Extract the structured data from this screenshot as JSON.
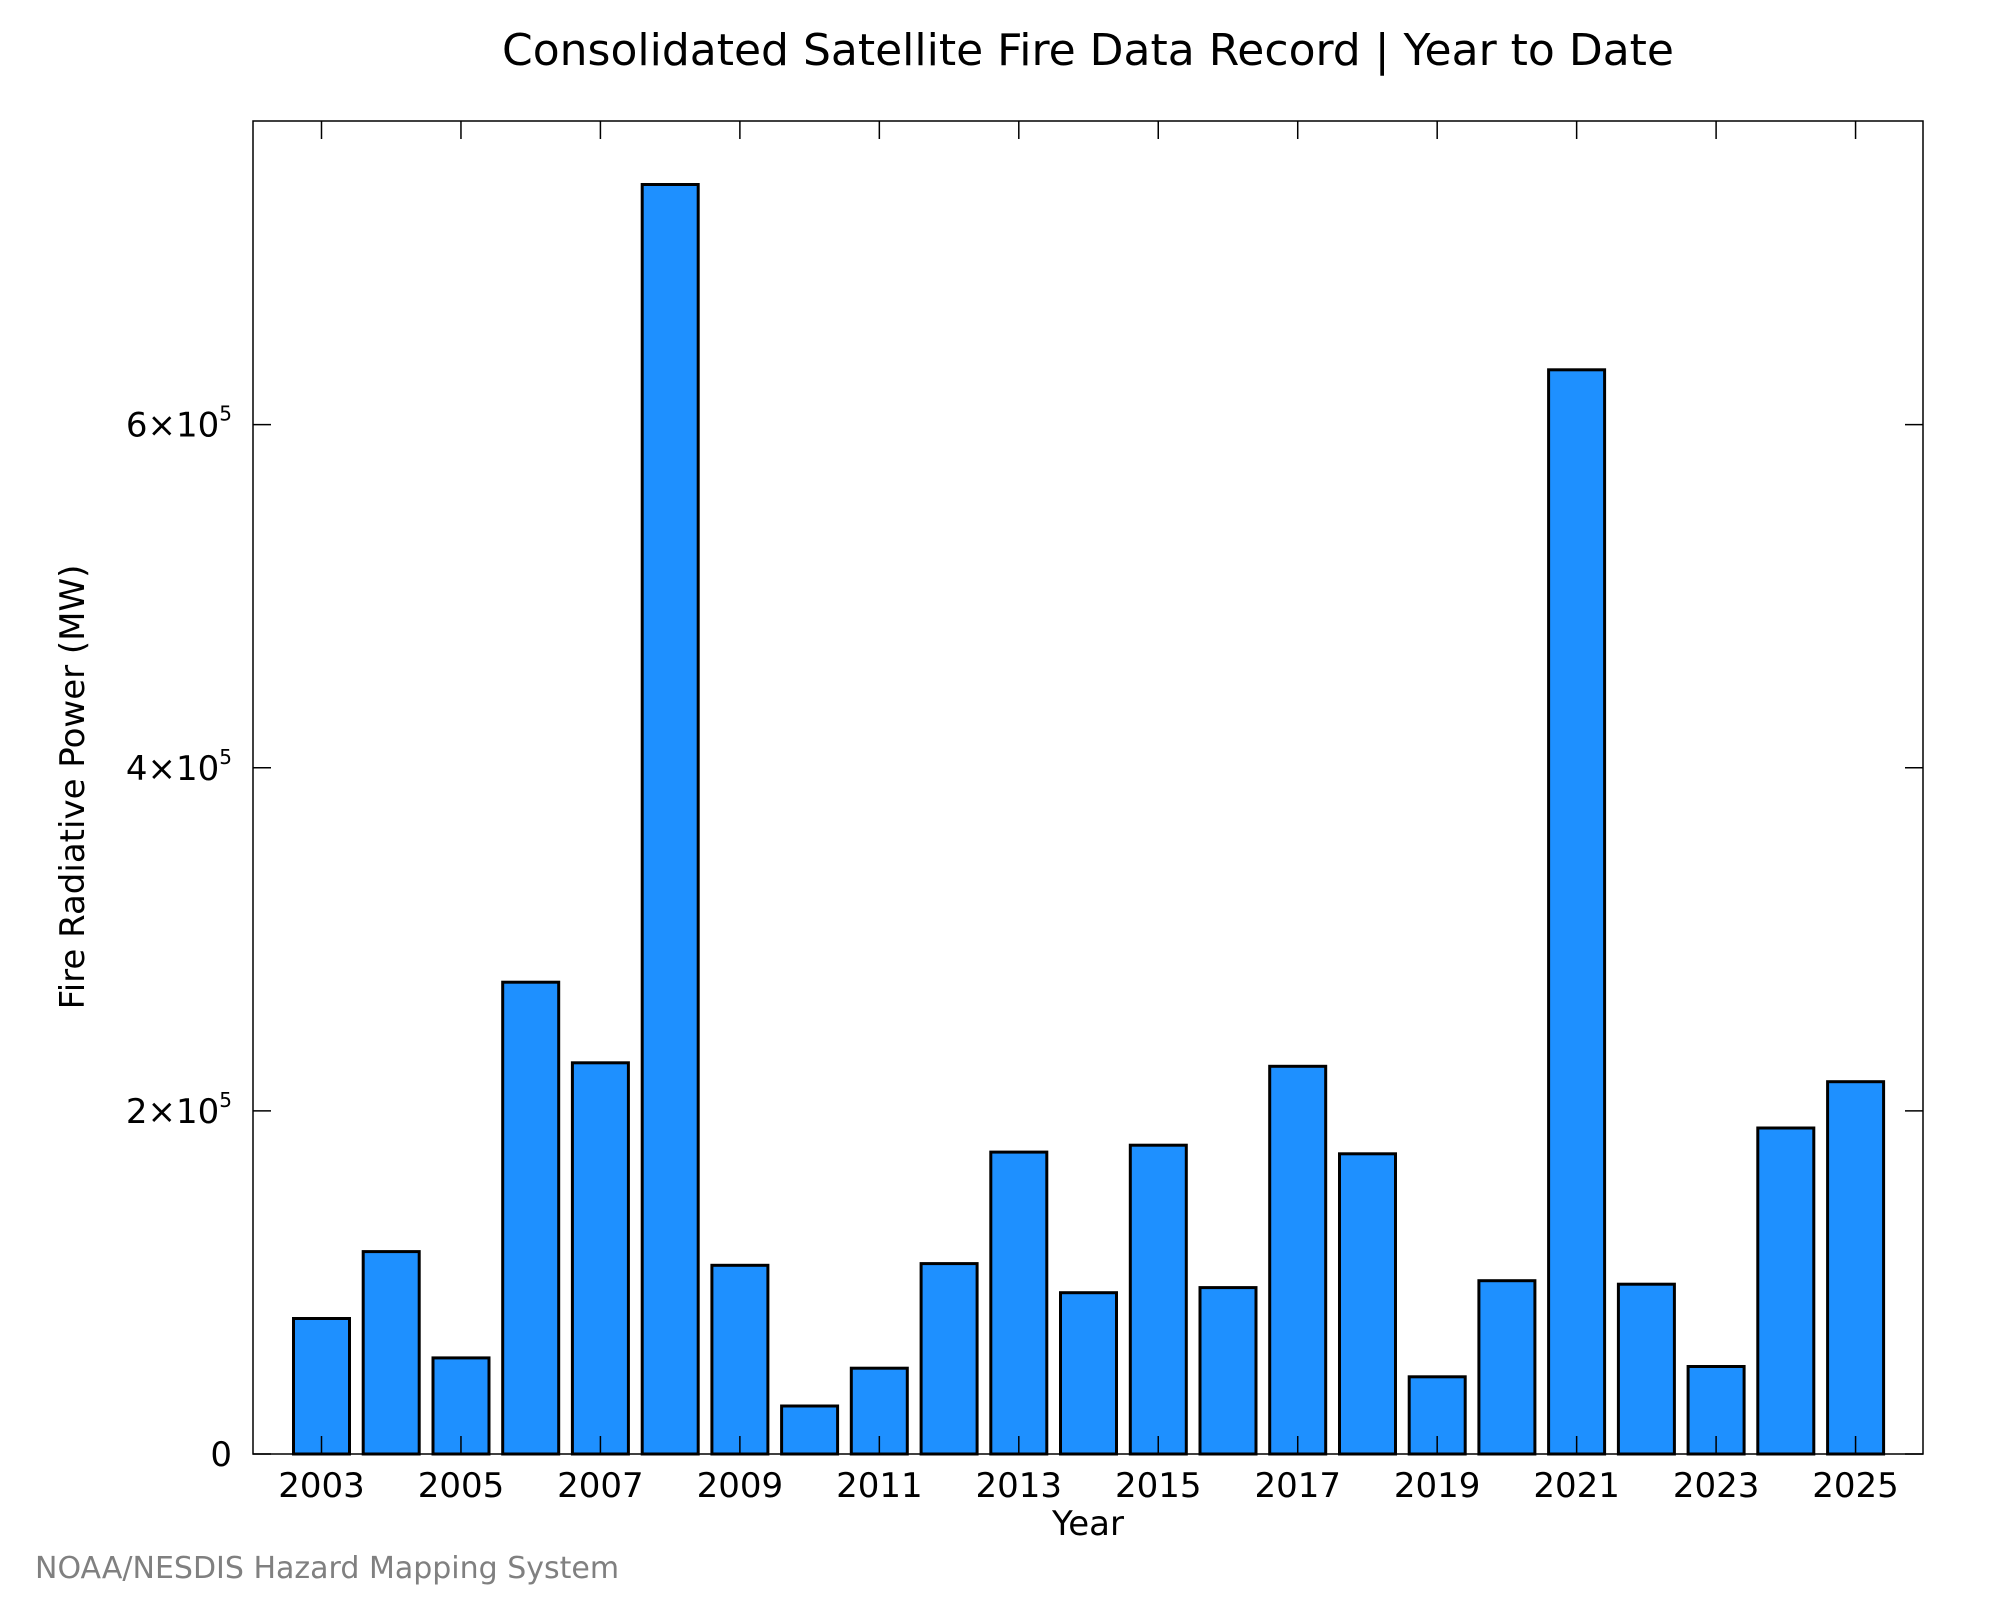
{
  "chart_data": {
    "type": "bar",
    "title": "Consolidated Satellite Fire Data Record | Year to Date",
    "xlabel": "Year",
    "ylabel": "Fire Radiative Power (MW)",
    "categories": [
      "2003",
      "2004",
      "2005",
      "2006",
      "2007",
      "2008",
      "2009",
      "2010",
      "2011",
      "2012",
      "2013",
      "2014",
      "2015",
      "2016",
      "2017",
      "2018",
      "2019",
      "2020",
      "2021",
      "2022",
      "2023",
      "2024",
      "2025"
    ],
    "values": [
      79000,
      118000,
      56000,
      275000,
      228000,
      740000,
      110000,
      28000,
      50000,
      111000,
      176000,
      94000,
      180000,
      97000,
      226000,
      175000,
      45000,
      101000,
      632000,
      99000,
      51000,
      190000,
      217000
    ],
    "ylim": [
      0,
      777000
    ],
    "x_tick_labels": [
      "2003",
      "2005",
      "2007",
      "2009",
      "2011",
      "2013",
      "2015",
      "2017",
      "2019",
      "2021",
      "2023",
      "2025"
    ],
    "y_ticks": [
      {
        "value": 0,
        "label": "0"
      },
      {
        "value": 200000,
        "label": "2×10",
        "exp": "5"
      },
      {
        "value": 400000,
        "label": "4×10",
        "exp": "5"
      },
      {
        "value": 600000,
        "label": "6×10",
        "exp": "5"
      }
    ],
    "bar_color": "#1e90ff",
    "edge_color": "#000000",
    "grid": false,
    "legend": "none"
  },
  "credit": "NOAA/NESDIS Hazard Mapping System"
}
